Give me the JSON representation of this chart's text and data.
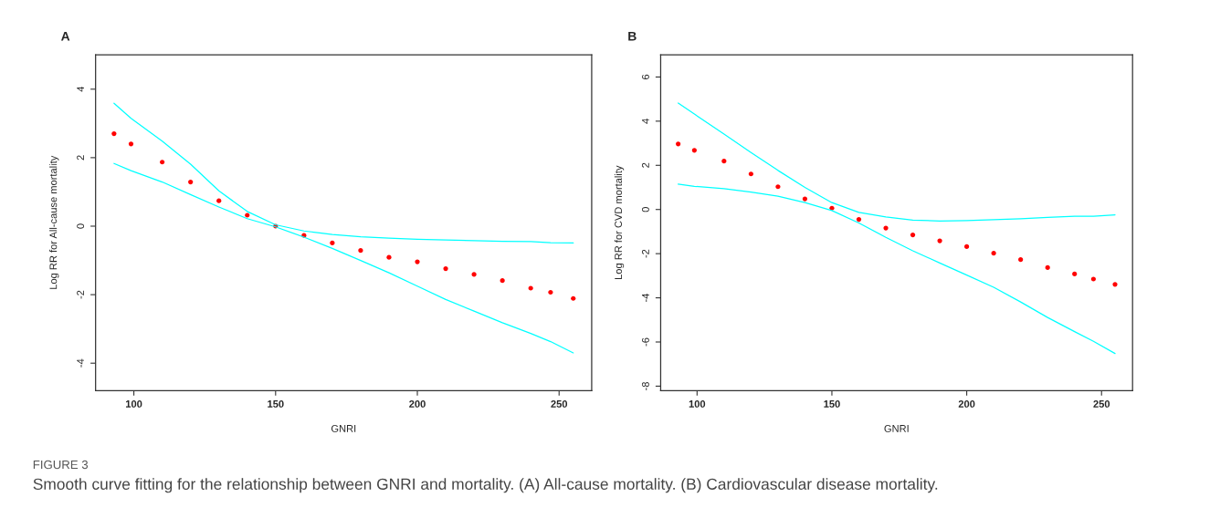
{
  "chart_data": [
    {
      "type": "scatter",
      "title": "A",
      "xlabel": "GNRI",
      "ylabel": "Log RR for All-cause mortality",
      "grid": false,
      "legend": false,
      "x": [
        93,
        99,
        110,
        120,
        130,
        140,
        150,
        160,
        170,
        180,
        190,
        200,
        210,
        220,
        230,
        240,
        247,
        255
      ],
      "xlim": [
        86.5,
        261.5
      ],
      "xticks": [
        100,
        150,
        200,
        250
      ],
      "ylim": [
        -4.8,
        5.0
      ],
      "yticks": [
        -4,
        -2,
        0,
        2,
        4
      ],
      "series": [
        {
          "type": "line",
          "color": "#00ffff",
          "values": [
            3.59,
            3.15,
            2.48,
            1.81,
            1.03,
            0.43,
            0.04,
            -0.14,
            -0.24,
            -0.31,
            -0.35,
            -0.38,
            -0.4,
            -0.42,
            -0.44,
            -0.45,
            -0.48,
            -0.49
          ]
        },
        {
          "type": "line",
          "color": "#00ffff",
          "values": [
            1.83,
            1.62,
            1.29,
            0.92,
            0.56,
            0.22,
            -0.02,
            -0.32,
            -0.65,
            -1.0,
            -1.36,
            -1.75,
            -2.14,
            -2.48,
            -2.82,
            -3.13,
            -3.37,
            -3.7
          ]
        },
        {
          "marker": "circle",
          "color": "#ff0000",
          "values": [
            2.7,
            2.4,
            1.87,
            1.29,
            0.74,
            0.32,
            0.0,
            -0.27,
            -0.49,
            -0.71,
            -0.91,
            -1.04,
            -1.24,
            -1.41,
            -1.59,
            -1.81,
            -1.93,
            -2.11
          ]
        }
      ],
      "annotations": [
        "FIGURE 3",
        "Smooth curve fitting for the relationship between GNRI and mortality. (A) All-cause mortality. (B) Cardiovascular disease mortality."
      ]
    },
    {
      "type": "scatter",
      "title": "B",
      "xlabel": "GNRI",
      "ylabel": "Log RR for CVD mortality",
      "grid": false,
      "legend": false,
      "x": [
        93,
        99,
        110,
        120,
        130,
        140,
        150,
        160,
        170,
        180,
        190,
        200,
        210,
        220,
        230,
        240,
        247,
        255
      ],
      "xlim": [
        86.5,
        261.5
      ],
      "xticks": [
        100,
        150,
        200,
        250
      ],
      "ylim": [
        -8.2,
        7.0
      ],
      "yticks": [
        -8,
        -6,
        -4,
        -2,
        0,
        2,
        4,
        6
      ],
      "series": [
        {
          "type": "line",
          "color": "#00ffff",
          "values": [
            4.82,
            4.32,
            3.42,
            2.58,
            1.77,
            1.0,
            0.31,
            -0.13,
            -0.34,
            -0.48,
            -0.52,
            -0.5,
            -0.46,
            -0.42,
            -0.36,
            -0.31,
            -0.31,
            -0.24
          ]
        },
        {
          "type": "line",
          "color": "#00ffff",
          "values": [
            1.15,
            1.05,
            0.94,
            0.79,
            0.6,
            0.31,
            -0.05,
            -0.61,
            -1.26,
            -1.87,
            -2.42,
            -2.97,
            -3.52,
            -4.19,
            -4.89,
            -5.53,
            -5.97,
            -6.52
          ]
        },
        {
          "marker": "circle",
          "color": "#ff0000",
          "values": [
            2.97,
            2.68,
            2.19,
            1.61,
            1.03,
            0.48,
            0.06,
            -0.45,
            -0.84,
            -1.15,
            -1.42,
            -1.68,
            -1.98,
            -2.27,
            -2.63,
            -2.92,
            -3.15,
            -3.39
          ]
        }
      ]
    }
  ]
}
